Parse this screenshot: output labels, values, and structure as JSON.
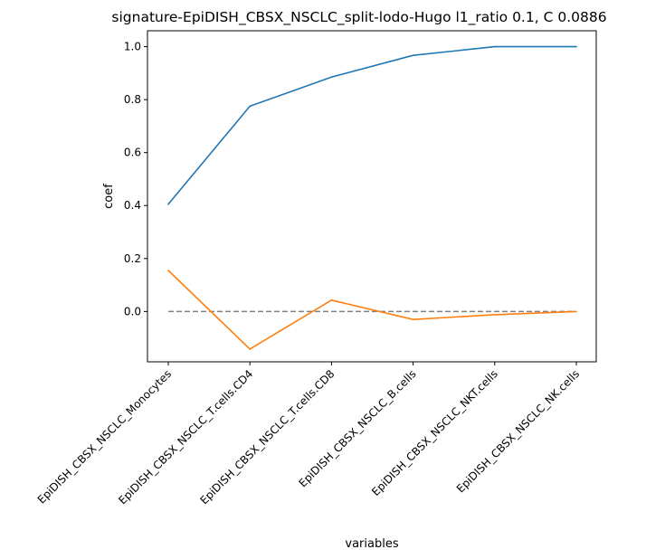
{
  "chart_data": {
    "type": "line",
    "title": "signature-EpiDISH_CBSX_NSCLC_split-lodo-Hugo l1_ratio 0.1, C 0.0886",
    "xlabel": "variables",
    "ylabel": "coef",
    "categories": [
      "EpiDISH_CBSX_NSCLC_Monocytes",
      "EpiDISH_CBSX_NSCLC_T.cells.CD4",
      "EpiDISH_CBSX_NSCLC_T.cells.CD8",
      "EpiDISH_CBSX_NSCLC_B.cells",
      "EpiDISH_CBSX_NSCLC_NKT.cells",
      "EpiDISH_CBSX_NSCLC_NK.cells"
    ],
    "series": [
      {
        "color": "#1f77b4",
        "values": [
          0.405,
          0.775,
          0.885,
          0.967,
          1.0,
          1.0
        ]
      },
      {
        "color": "#ff7f0e",
        "values": [
          0.155,
          -0.142,
          0.043,
          -0.03,
          -0.012,
          0.0
        ]
      }
    ],
    "reference_line": {
      "y": 0.0,
      "style": "dashed",
      "color": "#808080"
    },
    "ylim": [
      -0.19,
      1.06
    ],
    "yticks": [
      0.0,
      0.2,
      0.4,
      0.6,
      0.8,
      1.0
    ],
    "ytick_labels": [
      "0.0",
      "0.2",
      "0.4",
      "0.6",
      "0.8",
      "1.0"
    ],
    "grid": false,
    "legend": "none"
  }
}
